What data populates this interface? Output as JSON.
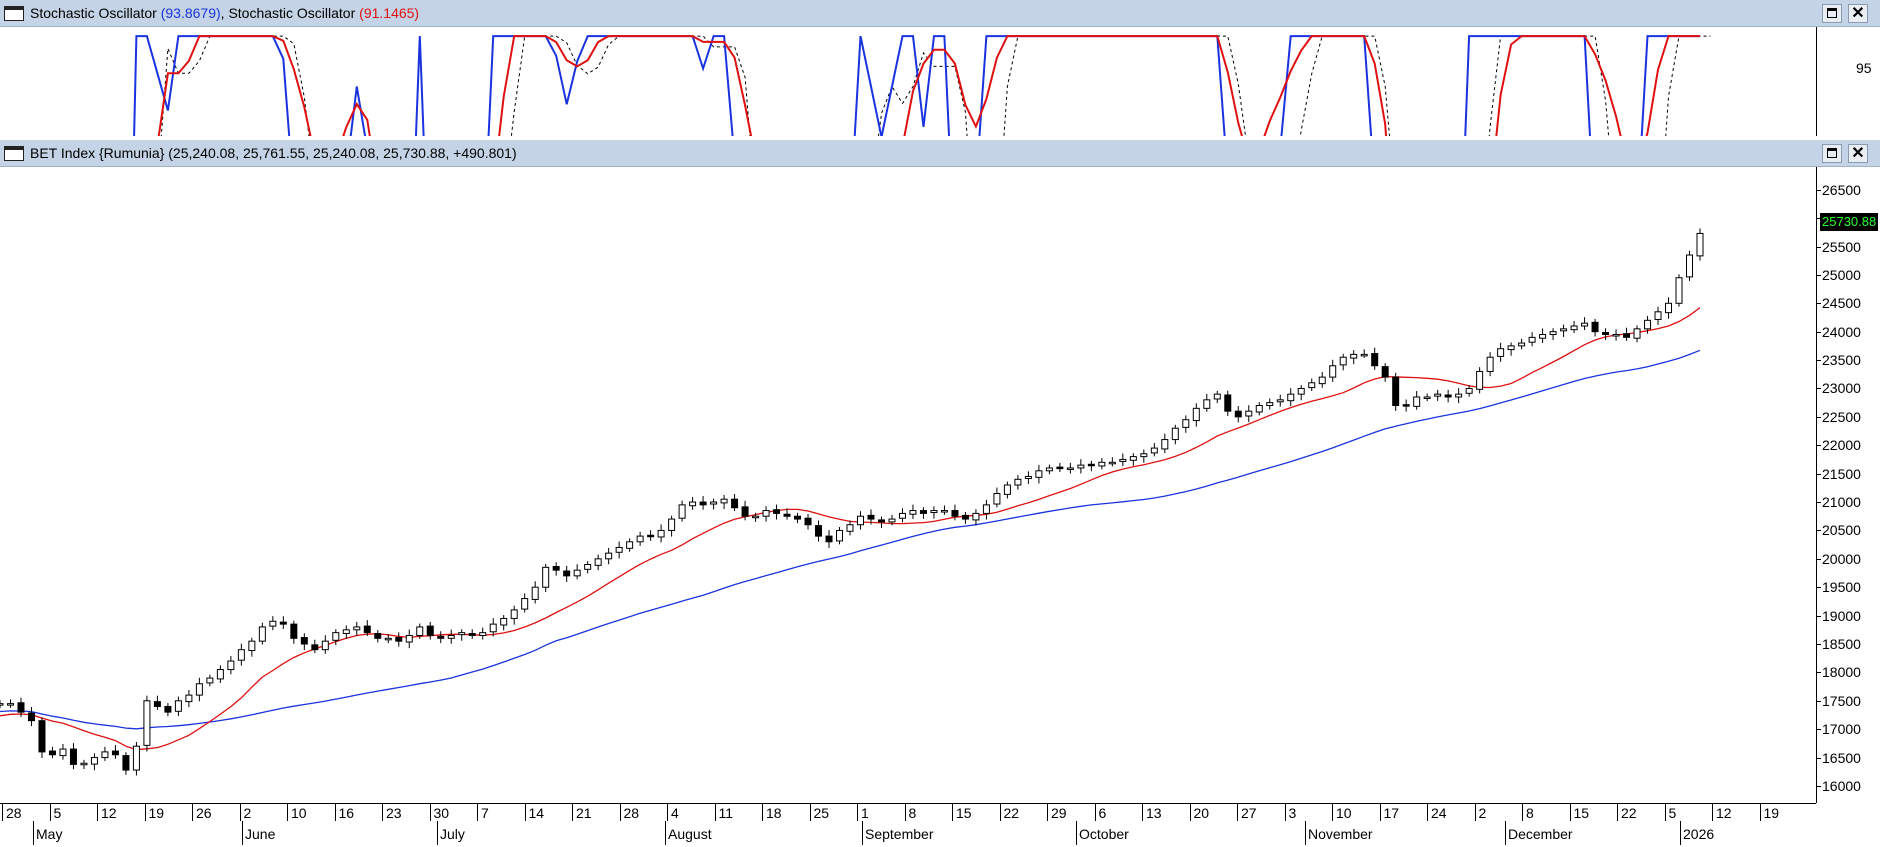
{
  "oscillator_window": {
    "title_prefix": "Stochastic Oscillator",
    "value1": "(93.8679)",
    "sep": ", ",
    "title2": "Stochastic Oscillator",
    "value2": "(91.1465)",
    "y_tick": "95",
    "icon": "window-icon"
  },
  "price_window": {
    "title": "BET Index {Rumunia} (25,240.08, 25,761.55, 25,240.08, 25,730.88, +490.801)",
    "last_price_tag": "25730.88",
    "icon": "window-icon"
  },
  "window_buttons": {
    "maximize": "maximize-icon",
    "close_label": "✕"
  },
  "colors": {
    "titlebar": "#c4d4e6",
    "fast_ma": "#e01010",
    "slow_ma": "#1a33e0",
    "k_line": "#1a33e0",
    "d_line": "#e01010"
  },
  "x_axis": {
    "day_ticks": [
      "28",
      "5",
      "12",
      "19",
      "26",
      "2",
      "10",
      "16",
      "23",
      "30",
      "7",
      "14",
      "21",
      "28",
      "4",
      "11",
      "18",
      "25",
      "1",
      "8",
      "15",
      "22",
      "29",
      "6",
      "13",
      "20",
      "27",
      "3",
      "10",
      "17",
      "24",
      "2",
      "8",
      "15",
      "22",
      "5",
      "12",
      "19"
    ],
    "months": [
      "May",
      "June",
      "July",
      "August",
      "September",
      "October",
      "November",
      "December",
      "2026"
    ]
  },
  "chart_data": {
    "type": "candlestick",
    "y_ticks": [
      16000,
      16500,
      17000,
      17500,
      18000,
      18500,
      19000,
      19500,
      20000,
      20500,
      21000,
      21500,
      22000,
      22500,
      23000,
      23500,
      24000,
      24500,
      25000,
      25500,
      26000,
      26500
    ],
    "ylim": [
      15700,
      26900
    ],
    "last_close": 25730.88,
    "closes": [
      17450,
      17450,
      17300,
      17150,
      16600,
      16550,
      16650,
      16380,
      16400,
      16500,
      16600,
      16550,
      16280,
      16700,
      17500,
      17400,
      17300,
      17500,
      17600,
      17800,
      17900,
      18050,
      18200,
      18400,
      18550,
      18800,
      18900,
      18850,
      18600,
      18500,
      18400,
      18550,
      18700,
      18750,
      18800,
      18700,
      18600,
      18600,
      18550,
      18650,
      18800,
      18650,
      18600,
      18650,
      18700,
      18650,
      18700,
      18850,
      18950,
      19100,
      19300,
      19500,
      19850,
      19800,
      19700,
      19800,
      19900,
      20000,
      20100,
      20200,
      20300,
      20400,
      20400,
      20500,
      20700,
      20950,
      21000,
      20950,
      21000,
      21050,
      20900,
      20750,
      20750,
      20850,
      20800,
      20750,
      20700,
      20600,
      20400,
      20300,
      20500,
      20600,
      20750,
      20700,
      20650,
      20700,
      20800,
      20850,
      20800,
      20850,
      20850,
      20750,
      20700,
      20800,
      20950,
      21150,
      21300,
      21400,
      21450,
      21550,
      21600,
      21600,
      21600,
      21650,
      21650,
      21700,
      21700,
      21750,
      21800,
      21850,
      21950,
      22100,
      22300,
      22450,
      22650,
      22800,
      22900,
      22600,
      22500,
      22600,
      22700,
      22750,
      22800,
      22900,
      23000,
      23100,
      23200,
      23400,
      23550,
      23600,
      23600,
      23400,
      23200,
      22700,
      22700,
      22850,
      22850,
      22900,
      22850,
      22900,
      23000,
      23300,
      23550,
      23700,
      23750,
      23800,
      23900,
      23950,
      24000,
      24050,
      24100,
      24150,
      24000,
      23950,
      23950,
      23900,
      24050,
      24200,
      24350,
      24500,
      24950,
      25350,
      25730
    ]
  }
}
